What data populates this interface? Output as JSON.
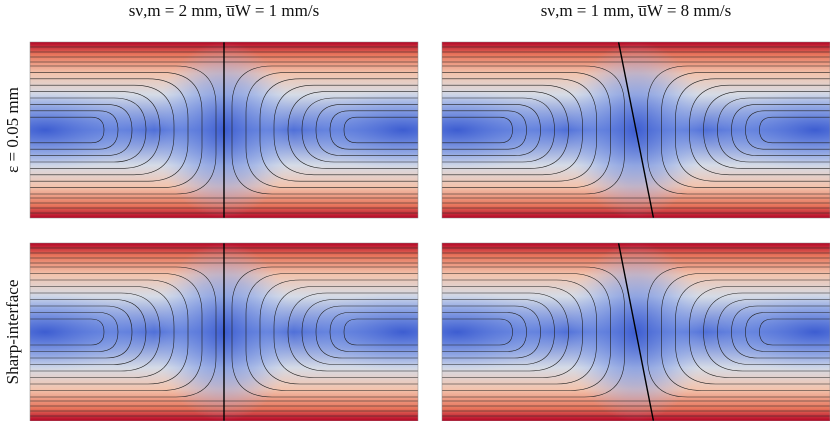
{
  "columns": [
    {
      "title": "sν,m = 2 mm, u̅W = 1 mm/s"
    },
    {
      "title": "sν,m = 1 mm, u̅W = 8 mm/s"
    }
  ],
  "rows": [
    {
      "label": "ε = 0.05 mm"
    },
    {
      "label": "Sharp-interface"
    }
  ]
}
